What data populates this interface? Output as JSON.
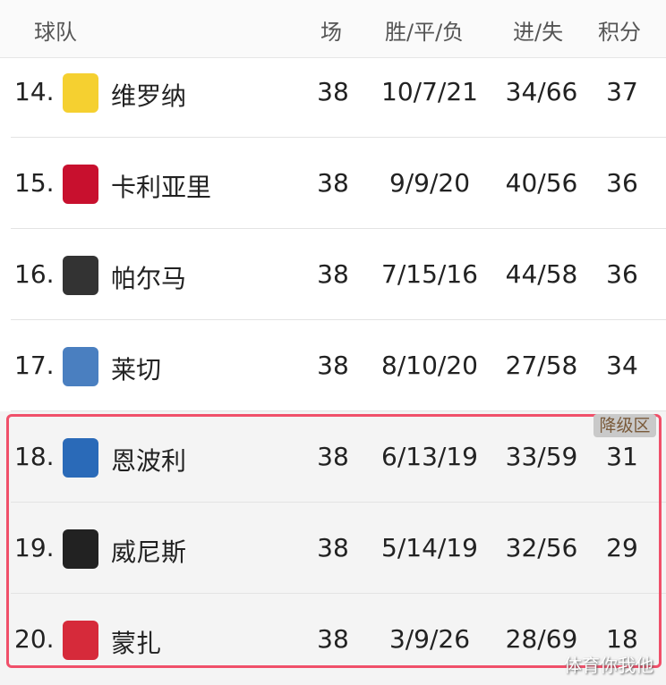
{
  "header": {
    "team": "球队",
    "played": "场",
    "wdl": "胜/平/负",
    "goals": "进/失",
    "points": "积分"
  },
  "rows": [
    {
      "rank": "14.",
      "team": "维罗纳",
      "played": "38",
      "wdl": "10/7/21",
      "goals": "34/66",
      "points": "37",
      "color": "#f5d030"
    },
    {
      "rank": "15.",
      "team": "卡利亚里",
      "played": "38",
      "wdl": "9/9/20",
      "goals": "40/56",
      "points": "36",
      "color": "#c8102e"
    },
    {
      "rank": "16.",
      "team": "帕尔马",
      "played": "38",
      "wdl": "7/15/16",
      "goals": "44/58",
      "points": "36",
      "color": "#333333"
    },
    {
      "rank": "17.",
      "team": "莱切",
      "played": "38",
      "wdl": "8/10/20",
      "goals": "27/58",
      "points": "34",
      "color": "#4a7fc0"
    },
    {
      "rank": "18.",
      "team": "恩波利",
      "played": "38",
      "wdl": "6/13/19",
      "goals": "33/59",
      "points": "31",
      "color": "#2a6ab8"
    },
    {
      "rank": "19.",
      "team": "威尼斯",
      "played": "38",
      "wdl": "5/14/19",
      "goals": "32/56",
      "points": "29",
      "color": "#222222"
    },
    {
      "rank": "20.",
      "team": "蒙扎",
      "played": "38",
      "wdl": "3/9/26",
      "goals": "28/69",
      "points": "18",
      "color": "#d62a3a"
    }
  ],
  "relegation_label": "降级区",
  "watermark": "体育你我他"
}
